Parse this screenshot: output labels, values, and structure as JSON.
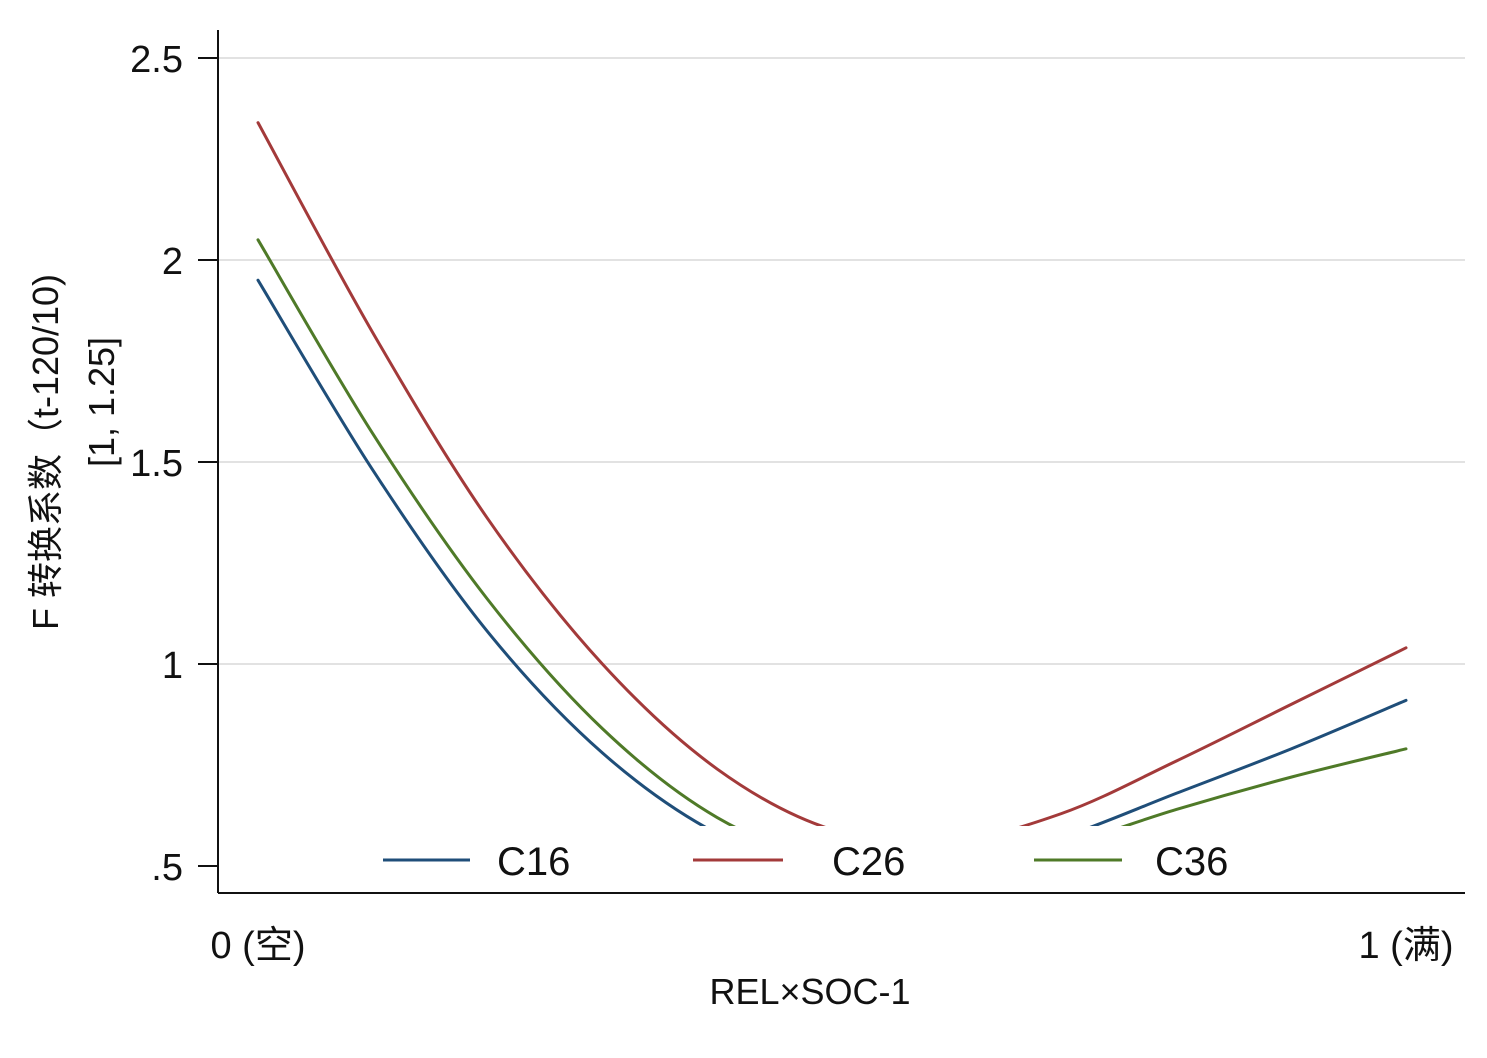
{
  "chart_data": {
    "type": "line",
    "title": "",
    "xlabel": "REL×SOC-1",
    "ylabel_lines": [
      "F 转换系数（t-120/10)",
      "[1, 1.25]"
    ],
    "xlim": [
      0,
      1
    ],
    "ylim": [
      0.5,
      2.5
    ],
    "x_ticks": [
      {
        "value": 0,
        "label": "0 (空)"
      },
      {
        "value": 1,
        "label": "1 (满)"
      }
    ],
    "y_ticks": [
      {
        "value": 0.5,
        "label": ".5"
      },
      {
        "value": 1,
        "label": "1"
      },
      {
        "value": 1.5,
        "label": "1.5"
      },
      {
        "value": 2,
        "label": "2"
      },
      {
        "value": 2.5,
        "label": "2.5"
      }
    ],
    "grid": "horizontal",
    "legend_position": "bottom-inside",
    "series": [
      {
        "name": "C16",
        "color": "#1f4e79",
        "points": [
          [
            0,
            1.95
          ],
          [
            0.1,
            1.48
          ],
          [
            0.2,
            1.08
          ],
          [
            0.3,
            0.78
          ],
          [
            0.4,
            0.58
          ],
          [
            0.5,
            0.48
          ],
          [
            0.6,
            0.49
          ],
          [
            0.7,
            0.57
          ],
          [
            0.8,
            0.68
          ],
          [
            0.9,
            0.79
          ],
          [
            1,
            0.91
          ]
        ]
      },
      {
        "name": "C26",
        "color": "#a33a3a",
        "points": [
          [
            0,
            2.34
          ],
          [
            0.1,
            1.82
          ],
          [
            0.2,
            1.36
          ],
          [
            0.3,
            1.0
          ],
          [
            0.4,
            0.74
          ],
          [
            0.5,
            0.59
          ],
          [
            0.6,
            0.56
          ],
          [
            0.7,
            0.63
          ],
          [
            0.8,
            0.76
          ],
          [
            0.9,
            0.9
          ],
          [
            1,
            1.04
          ]
        ]
      },
      {
        "name": "C36",
        "color": "#4f7a28",
        "points": [
          [
            0,
            2.05
          ],
          [
            0.1,
            1.57
          ],
          [
            0.2,
            1.16
          ],
          [
            0.3,
            0.84
          ],
          [
            0.4,
            0.62
          ],
          [
            0.5,
            0.51
          ],
          [
            0.6,
            0.49
          ],
          [
            0.7,
            0.55
          ],
          [
            0.8,
            0.64
          ],
          [
            0.9,
            0.72
          ],
          [
            1,
            0.79
          ]
        ]
      }
    ]
  }
}
